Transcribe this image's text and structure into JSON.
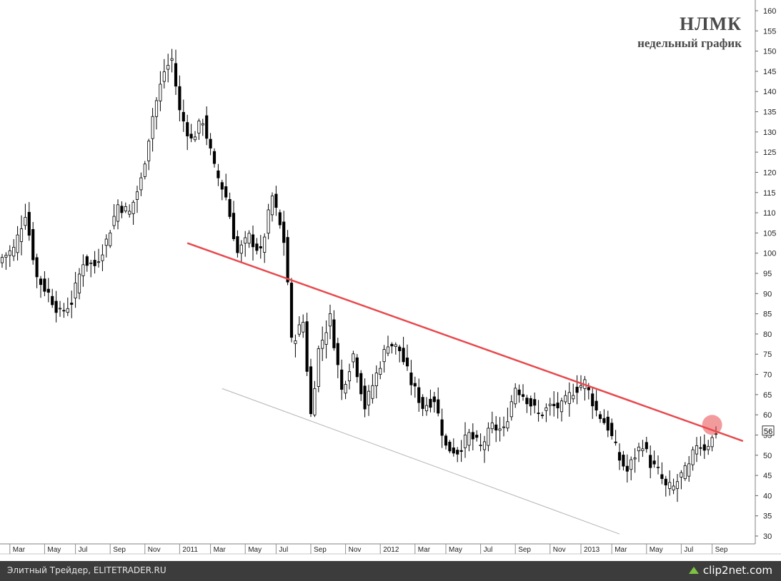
{
  "title": "НЛМК",
  "subtitle": "недельный график",
  "footer": {
    "left_text": "Элитный Трейдер, ELITETRADER.RU",
    "right_text": "clip2net.com",
    "right_icon": "upload-arrow-icon"
  },
  "colors": {
    "background": "#ffffff",
    "candle_up": "#ffffff",
    "candle_down": "#000000",
    "resistance_line": "#e8494d",
    "support_line": "#b4b4b4",
    "highlight": "#e8494d",
    "footer_bg": "#3c3c3c"
  },
  "chart_data": {
    "type": "candlestick",
    "title": "НЛМК",
    "subtitle": "недельный график",
    "grid": false,
    "y_axis": {
      "position": "right",
      "range": [
        30,
        161
      ],
      "ticks": [
        30,
        35,
        40,
        45,
        50,
        55,
        60,
        65,
        70,
        75,
        80,
        85,
        90,
        95,
        100,
        105,
        110,
        115,
        120,
        125,
        130,
        135,
        140,
        145,
        150,
        155,
        160
      ]
    },
    "x_axis": {
      "ticks": [
        {
          "label": "Mar",
          "week": 2
        },
        {
          "label": "May",
          "week": 11
        },
        {
          "label": "Jul",
          "week": 19
        },
        {
          "label": "Sep",
          "week": 28
        },
        {
          "label": "Nov",
          "week": 37
        },
        {
          "label": "2011",
          "week": 46
        },
        {
          "label": "Mar",
          "week": 54
        },
        {
          "label": "May",
          "week": 63
        },
        {
          "label": "Jul",
          "week": 71
        },
        {
          "label": "Sep",
          "week": 80
        },
        {
          "label": "Nov",
          "week": 89
        },
        {
          "label": "2012",
          "week": 98
        },
        {
          "label": "Mar",
          "week": 107
        },
        {
          "label": "May",
          "week": 115
        },
        {
          "label": "Jul",
          "week": 124
        },
        {
          "label": "Sep",
          "week": 133
        },
        {
          "label": "Nov",
          "week": 142
        },
        {
          "label": "2013",
          "week": 150
        },
        {
          "label": "Mar",
          "week": 158
        },
        {
          "label": "May",
          "week": 167
        },
        {
          "label": "Jul",
          "week": 176
        },
        {
          "label": "Sep",
          "week": 184
        }
      ]
    },
    "last_price_label": "56",
    "close_anchors": [
      {
        "week": 0,
        "close": 99
      },
      {
        "week": 3,
        "close": 101
      },
      {
        "week": 6,
        "close": 110
      },
      {
        "week": 9,
        "close": 94
      },
      {
        "week": 12,
        "close": 90
      },
      {
        "week": 15,
        "close": 85
      },
      {
        "week": 18,
        "close": 88
      },
      {
        "week": 21,
        "close": 98
      },
      {
        "week": 24,
        "close": 97
      },
      {
        "week": 27,
        "close": 103
      },
      {
        "week": 30,
        "close": 112
      },
      {
        "week": 33,
        "close": 110
      },
      {
        "week": 36,
        "close": 118
      },
      {
        "week": 39,
        "close": 134
      },
      {
        "week": 42,
        "close": 145
      },
      {
        "week": 44,
        "close": 148
      },
      {
        "week": 46,
        "close": 135
      },
      {
        "week": 49,
        "close": 128
      },
      {
        "week": 52,
        "close": 133
      },
      {
        "week": 55,
        "close": 121
      },
      {
        "week": 58,
        "close": 114
      },
      {
        "week": 61,
        "close": 100
      },
      {
        "week": 64,
        "close": 104
      },
      {
        "week": 67,
        "close": 100
      },
      {
        "week": 70,
        "close": 114
      },
      {
        "week": 73,
        "close": 103
      },
      {
        "week": 74,
        "close": 93
      },
      {
        "week": 75,
        "close": 78
      },
      {
        "week": 78,
        "close": 83
      },
      {
        "week": 80,
        "close": 60
      },
      {
        "week": 82,
        "close": 76
      },
      {
        "week": 85,
        "close": 84
      },
      {
        "week": 88,
        "close": 66
      },
      {
        "week": 91,
        "close": 75
      },
      {
        "week": 94,
        "close": 62
      },
      {
        "week": 97,
        "close": 70
      },
      {
        "week": 100,
        "close": 78
      },
      {
        "week": 103,
        "close": 76
      },
      {
        "week": 106,
        "close": 68
      },
      {
        "week": 109,
        "close": 62
      },
      {
        "week": 112,
        "close": 64
      },
      {
        "week": 115,
        "close": 52
      },
      {
        "week": 118,
        "close": 51
      },
      {
        "week": 121,
        "close": 55
      },
      {
        "week": 124,
        "close": 52
      },
      {
        "week": 127,
        "close": 57
      },
      {
        "week": 130,
        "close": 56
      },
      {
        "week": 133,
        "close": 67
      },
      {
        "week": 136,
        "close": 64
      },
      {
        "week": 139,
        "close": 60
      },
      {
        "week": 142,
        "close": 62
      },
      {
        "week": 145,
        "close": 62
      },
      {
        "week": 148,
        "close": 66
      },
      {
        "week": 151,
        "close": 68
      },
      {
        "week": 154,
        "close": 61
      },
      {
        "week": 157,
        "close": 57
      },
      {
        "week": 160,
        "close": 49
      },
      {
        "week": 162,
        "close": 46
      },
      {
        "week": 164,
        "close": 50
      },
      {
        "week": 166,
        "close": 53
      },
      {
        "week": 168,
        "close": 48
      },
      {
        "week": 170,
        "close": 46
      },
      {
        "week": 172,
        "close": 42
      },
      {
        "week": 174,
        "close": 42
      },
      {
        "week": 176,
        "close": 45
      },
      {
        "week": 178,
        "close": 47
      },
      {
        "week": 180,
        "close": 53
      },
      {
        "week": 182,
        "close": 52
      },
      {
        "week": 184,
        "close": 54
      },
      {
        "week": 185,
        "close": 56
      }
    ],
    "resistance_line": {
      "start": {
        "week": 48,
        "value": 102.5
      },
      "end": {
        "week": 192,
        "value": 53.5
      }
    },
    "support_line": {
      "start": {
        "week": 57,
        "value": 66.5
      },
      "end": {
        "week": 160,
        "value": 30.5
      }
    },
    "highlight": {
      "week": 184,
      "value": 57.5
    }
  }
}
